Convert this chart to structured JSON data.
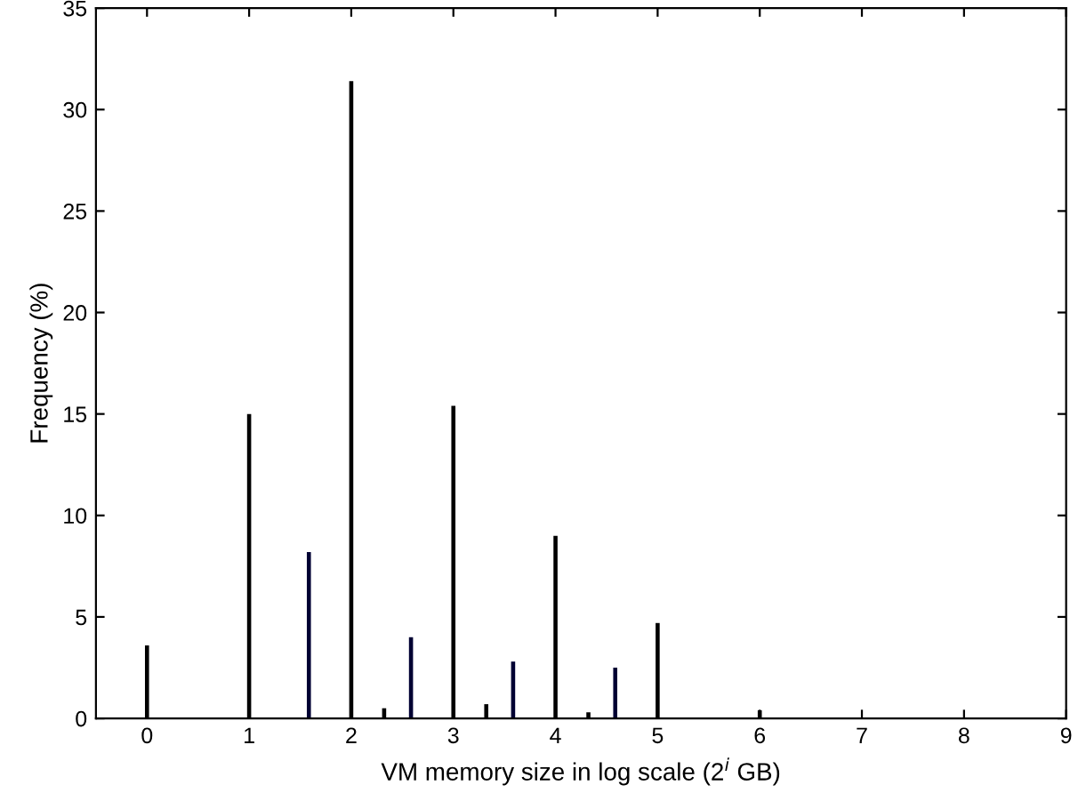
{
  "chart_data": {
    "type": "bar",
    "xlabel": "VM memory size in log scale (2$^{i}$ GB)",
    "ylabel": "Frequency (%)",
    "x": [
      0,
      1,
      1.585,
      2,
      2.322,
      2.585,
      3,
      3.322,
      3.585,
      4,
      4.322,
      4.585,
      5,
      6
    ],
    "values": [
      3.6,
      15.0,
      8.2,
      31.4,
      0.5,
      4.0,
      15.4,
      0.7,
      2.8,
      9.0,
      0.3,
      2.5,
      4.7,
      0.4
    ],
    "colors": [
      "#000000",
      "#000000",
      "#000033",
      "#000000",
      "#000000",
      "#000033",
      "#000000",
      "#000000",
      "#000033",
      "#000000",
      "#000000",
      "#000033",
      "#000000",
      "#000000"
    ],
    "xlim": [
      -0.5,
      9
    ],
    "xticks": [
      0,
      1,
      2,
      3,
      4,
      5,
      6,
      7,
      8,
      9
    ],
    "ylim": [
      0,
      35
    ],
    "yticks": [
      0,
      5,
      10,
      15,
      20,
      25,
      30,
      35
    ],
    "grid": false
  }
}
